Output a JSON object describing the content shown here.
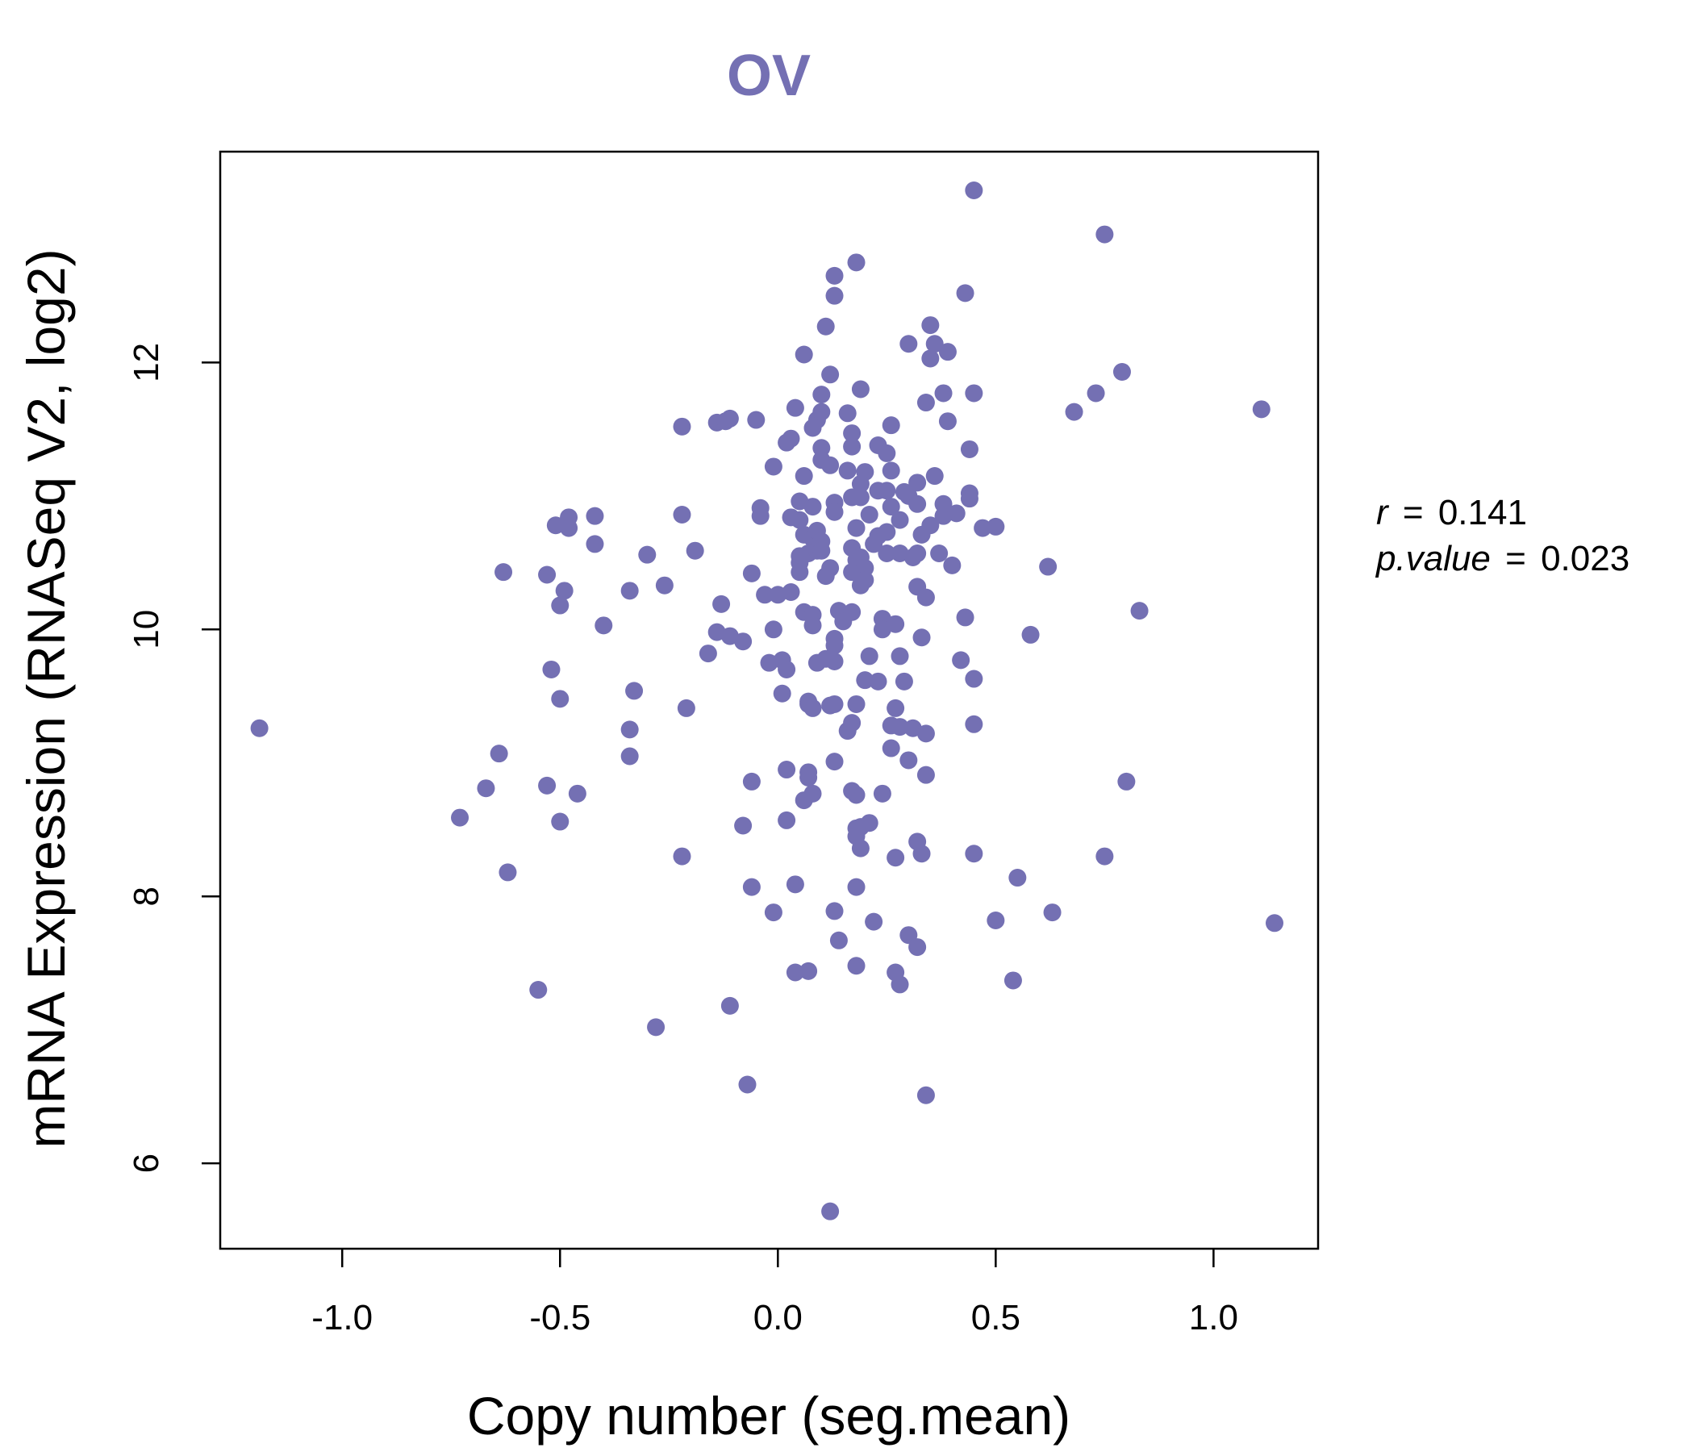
{
  "chart_data": {
    "type": "scatter",
    "title": "OV",
    "xlabel": "Copy number (seg.mean)",
    "ylabel": "mRNA Expression (RNASeq V2, log2)",
    "xlim": [
      -1.28,
      1.24
    ],
    "ylim": [
      5.36,
      13.58
    ],
    "x_ticks": [
      -1.0,
      -0.5,
      0.0,
      0.5,
      1.0
    ],
    "x_tick_labels": [
      "-1.0",
      "-0.5",
      "0.0",
      "0.5",
      "1.0"
    ],
    "y_ticks": [
      6,
      8,
      10,
      12
    ],
    "y_tick_labels": [
      "6",
      "8",
      "10",
      "12"
    ],
    "point_color": "#7470B3",
    "annotations": {
      "r_label": "r",
      "r_value": "0.141",
      "p_label": "p.value",
      "p_value": "0.023",
      "equals": "="
    },
    "points": [
      [
        -1.19,
        9.26
      ],
      [
        -0.73,
        8.59
      ],
      [
        -0.67,
        8.81
      ],
      [
        -0.64,
        9.07
      ],
      [
        -0.63,
        10.43
      ],
      [
        -0.62,
        8.18
      ],
      [
        -0.55,
        7.3
      ],
      [
        -0.53,
        10.41
      ],
      [
        -0.53,
        8.83
      ],
      [
        -0.52,
        9.7
      ],
      [
        -0.51,
        10.78
      ],
      [
        -0.5,
        10.18
      ],
      [
        -0.5,
        9.48
      ],
      [
        -0.5,
        8.56
      ],
      [
        -0.49,
        10.29
      ],
      [
        -0.48,
        10.84
      ],
      [
        -0.48,
        10.76
      ],
      [
        -0.46,
        8.77
      ],
      [
        -0.42,
        10.85
      ],
      [
        -0.42,
        10.64
      ],
      [
        -0.4,
        10.03
      ],
      [
        -0.34,
        10.29
      ],
      [
        -0.34,
        9.25
      ],
      [
        -0.34,
        9.05
      ],
      [
        -0.33,
        9.54
      ],
      [
        -0.3,
        10.56
      ],
      [
        -0.28,
        7.02
      ],
      [
        -0.26,
        10.33
      ],
      [
        -0.22,
        11.52
      ],
      [
        -0.22,
        10.86
      ],
      [
        -0.22,
        8.3
      ],
      [
        -0.21,
        9.41
      ],
      [
        -0.19,
        10.59
      ],
      [
        -0.16,
        9.82
      ],
      [
        -0.14,
        11.55
      ],
      [
        -0.14,
        9.98
      ],
      [
        -0.13,
        10.19
      ],
      [
        -0.12,
        11.56
      ],
      [
        -0.11,
        11.58
      ],
      [
        -0.11,
        9.95
      ],
      [
        -0.11,
        7.18
      ],
      [
        -0.08,
        9.91
      ],
      [
        -0.08,
        8.53
      ],
      [
        -0.07,
        6.59
      ],
      [
        -0.06,
        10.42
      ],
      [
        -0.06,
        8.07
      ],
      [
        -0.06,
        8.86
      ],
      [
        -0.05,
        11.57
      ],
      [
        -0.04,
        10.91
      ],
      [
        -0.04,
        10.85
      ],
      [
        -0.03,
        10.26
      ],
      [
        -0.02,
        9.75
      ],
      [
        -0.01,
        11.22
      ],
      [
        -0.01,
        10.0
      ],
      [
        -0.01,
        7.88
      ],
      [
        0.0,
        10.26
      ],
      [
        0.01,
        9.77
      ],
      [
        0.01,
        9.52
      ],
      [
        0.02,
        8.95
      ],
      [
        0.02,
        8.57
      ],
      [
        0.02,
        11.4
      ],
      [
        0.02,
        9.7
      ],
      [
        0.03,
        11.43
      ],
      [
        0.03,
        10.84
      ],
      [
        0.03,
        10.28
      ],
      [
        0.04,
        7.43
      ],
      [
        0.04,
        8.09
      ],
      [
        0.04,
        11.66
      ],
      [
        0.05,
        10.96
      ],
      [
        0.05,
        10.82
      ],
      [
        0.05,
        10.55
      ],
      [
        0.05,
        10.5
      ],
      [
        0.05,
        10.43
      ],
      [
        0.06,
        12.06
      ],
      [
        0.06,
        11.15
      ],
      [
        0.06,
        10.13
      ],
      [
        0.06,
        8.72
      ],
      [
        0.06,
        10.71
      ],
      [
        0.07,
        10.57
      ],
      [
        0.07,
        9.44
      ],
      [
        0.07,
        9.46
      ],
      [
        0.07,
        8.93
      ],
      [
        0.07,
        8.89
      ],
      [
        0.07,
        7.44
      ],
      [
        0.08,
        11.51
      ],
      [
        0.08,
        10.92
      ],
      [
        0.08,
        10.68
      ],
      [
        0.08,
        10.11
      ],
      [
        0.08,
        10.03
      ],
      [
        0.08,
        9.41
      ],
      [
        0.08,
        8.77
      ],
      [
        0.09,
        11.57
      ],
      [
        0.09,
        10.74
      ],
      [
        0.09,
        10.59
      ],
      [
        0.09,
        9.75
      ],
      [
        0.1,
        11.76
      ],
      [
        0.1,
        11.63
      ],
      [
        0.1,
        11.36
      ],
      [
        0.1,
        11.27
      ],
      [
        0.1,
        10.66
      ],
      [
        0.1,
        10.59
      ],
      [
        0.11,
        12.27
      ],
      [
        0.11,
        10.4
      ],
      [
        0.11,
        9.78
      ],
      [
        0.12,
        11.91
      ],
      [
        0.12,
        11.23
      ],
      [
        0.12,
        10.46
      ],
      [
        0.12,
        9.43
      ],
      [
        0.12,
        5.64
      ],
      [
        0.13,
        12.65
      ],
      [
        0.13,
        12.5
      ],
      [
        0.13,
        10.95
      ],
      [
        0.13,
        10.88
      ],
      [
        0.13,
        9.93
      ],
      [
        0.13,
        9.88
      ],
      [
        0.13,
        9.76
      ],
      [
        0.13,
        9.44
      ],
      [
        0.13,
        9.01
      ],
      [
        0.13,
        7.89
      ],
      [
        0.14,
        10.14
      ],
      [
        0.14,
        7.67
      ],
      [
        0.15,
        10.06
      ],
      [
        0.16,
        11.62
      ],
      [
        0.16,
        11.19
      ],
      [
        0.16,
        9.24
      ],
      [
        0.17,
        10.99
      ],
      [
        0.17,
        11.47
      ],
      [
        0.17,
        11.37
      ],
      [
        0.17,
        10.61
      ],
      [
        0.17,
        10.43
      ],
      [
        0.17,
        10.13
      ],
      [
        0.17,
        9.3
      ],
      [
        0.17,
        8.79
      ],
      [
        0.18,
        12.75
      ],
      [
        0.18,
        10.76
      ],
      [
        0.18,
        10.52
      ],
      [
        0.18,
        9.44
      ],
      [
        0.18,
        8.76
      ],
      [
        0.18,
        8.51
      ],
      [
        0.18,
        8.45
      ],
      [
        0.18,
        8.07
      ],
      [
        0.18,
        7.48
      ],
      [
        0.19,
        11.8
      ],
      [
        0.19,
        11.09
      ],
      [
        0.19,
        10.99
      ],
      [
        0.19,
        10.54
      ],
      [
        0.19,
        10.4
      ],
      [
        0.19,
        10.33
      ],
      [
        0.19,
        8.52
      ],
      [
        0.19,
        8.36
      ],
      [
        0.2,
        11.18
      ],
      [
        0.2,
        10.46
      ],
      [
        0.2,
        10.37
      ],
      [
        0.2,
        9.62
      ],
      [
        0.21,
        10.86
      ],
      [
        0.21,
        9.8
      ],
      [
        0.21,
        8.55
      ],
      [
        0.22,
        10.64
      ],
      [
        0.22,
        7.81
      ],
      [
        0.23,
        11.38
      ],
      [
        0.23,
        11.04
      ],
      [
        0.23,
        10.7
      ],
      [
        0.23,
        9.61
      ],
      [
        0.24,
        10.08
      ],
      [
        0.24,
        10.0
      ],
      [
        0.24,
        8.77
      ],
      [
        0.25,
        11.32
      ],
      [
        0.25,
        11.04
      ],
      [
        0.25,
        10.73
      ],
      [
        0.25,
        10.57
      ],
      [
        0.26,
        11.53
      ],
      [
        0.26,
        11.19
      ],
      [
        0.26,
        10.92
      ],
      [
        0.26,
        9.28
      ],
      [
        0.26,
        9.11
      ],
      [
        0.27,
        10.04
      ],
      [
        0.27,
        9.41
      ],
      [
        0.27,
        8.29
      ],
      [
        0.27,
        7.43
      ],
      [
        0.28,
        10.82
      ],
      [
        0.28,
        10.57
      ],
      [
        0.28,
        9.8
      ],
      [
        0.28,
        9.27
      ],
      [
        0.28,
        7.34
      ],
      [
        0.29,
        9.61
      ],
      [
        0.29,
        11.03
      ],
      [
        0.3,
        12.14
      ],
      [
        0.3,
        11.0
      ],
      [
        0.3,
        9.02
      ],
      [
        0.3,
        7.71
      ],
      [
        0.31,
        10.54
      ],
      [
        0.31,
        9.26
      ],
      [
        0.32,
        11.1
      ],
      [
        0.32,
        10.94
      ],
      [
        0.32,
        10.57
      ],
      [
        0.32,
        10.32
      ],
      [
        0.32,
        8.41
      ],
      [
        0.32,
        7.62
      ],
      [
        0.33,
        10.71
      ],
      [
        0.33,
        9.94
      ],
      [
        0.33,
        8.32
      ],
      [
        0.34,
        11.7
      ],
      [
        0.34,
        10.24
      ],
      [
        0.34,
        9.22
      ],
      [
        0.34,
        8.91
      ],
      [
        0.34,
        6.51
      ],
      [
        0.35,
        12.28
      ],
      [
        0.35,
        12.03
      ],
      [
        0.35,
        10.78
      ],
      [
        0.36,
        12.14
      ],
      [
        0.36,
        11.15
      ],
      [
        0.37,
        10.57
      ],
      [
        0.38,
        11.77
      ],
      [
        0.38,
        10.85
      ],
      [
        0.38,
        10.94
      ],
      [
        0.39,
        12.08
      ],
      [
        0.39,
        11.56
      ],
      [
        0.4,
        10.48
      ],
      [
        0.41,
        10.87
      ],
      [
        0.42,
        9.77
      ],
      [
        0.43,
        10.09
      ],
      [
        0.43,
        12.52
      ],
      [
        0.44,
        11.35
      ],
      [
        0.44,
        11.02
      ],
      [
        0.44,
        10.98
      ],
      [
        0.45,
        11.77
      ],
      [
        0.45,
        13.29
      ],
      [
        0.45,
        9.63
      ],
      [
        0.45,
        9.29
      ],
      [
        0.45,
        8.32
      ],
      [
        0.47,
        10.76
      ],
      [
        0.5,
        10.77
      ],
      [
        0.5,
        7.82
      ],
      [
        0.54,
        7.37
      ],
      [
        0.55,
        8.14
      ],
      [
        0.58,
        9.96
      ],
      [
        0.62,
        10.47
      ],
      [
        0.63,
        7.88
      ],
      [
        0.68,
        11.63
      ],
      [
        0.73,
        11.77
      ],
      [
        0.75,
        12.96
      ],
      [
        0.75,
        8.3
      ],
      [
        0.79,
        11.93
      ],
      [
        0.8,
        8.86
      ],
      [
        0.83,
        10.14
      ],
      [
        1.11,
        11.65
      ],
      [
        1.14,
        7.8
      ]
    ]
  }
}
